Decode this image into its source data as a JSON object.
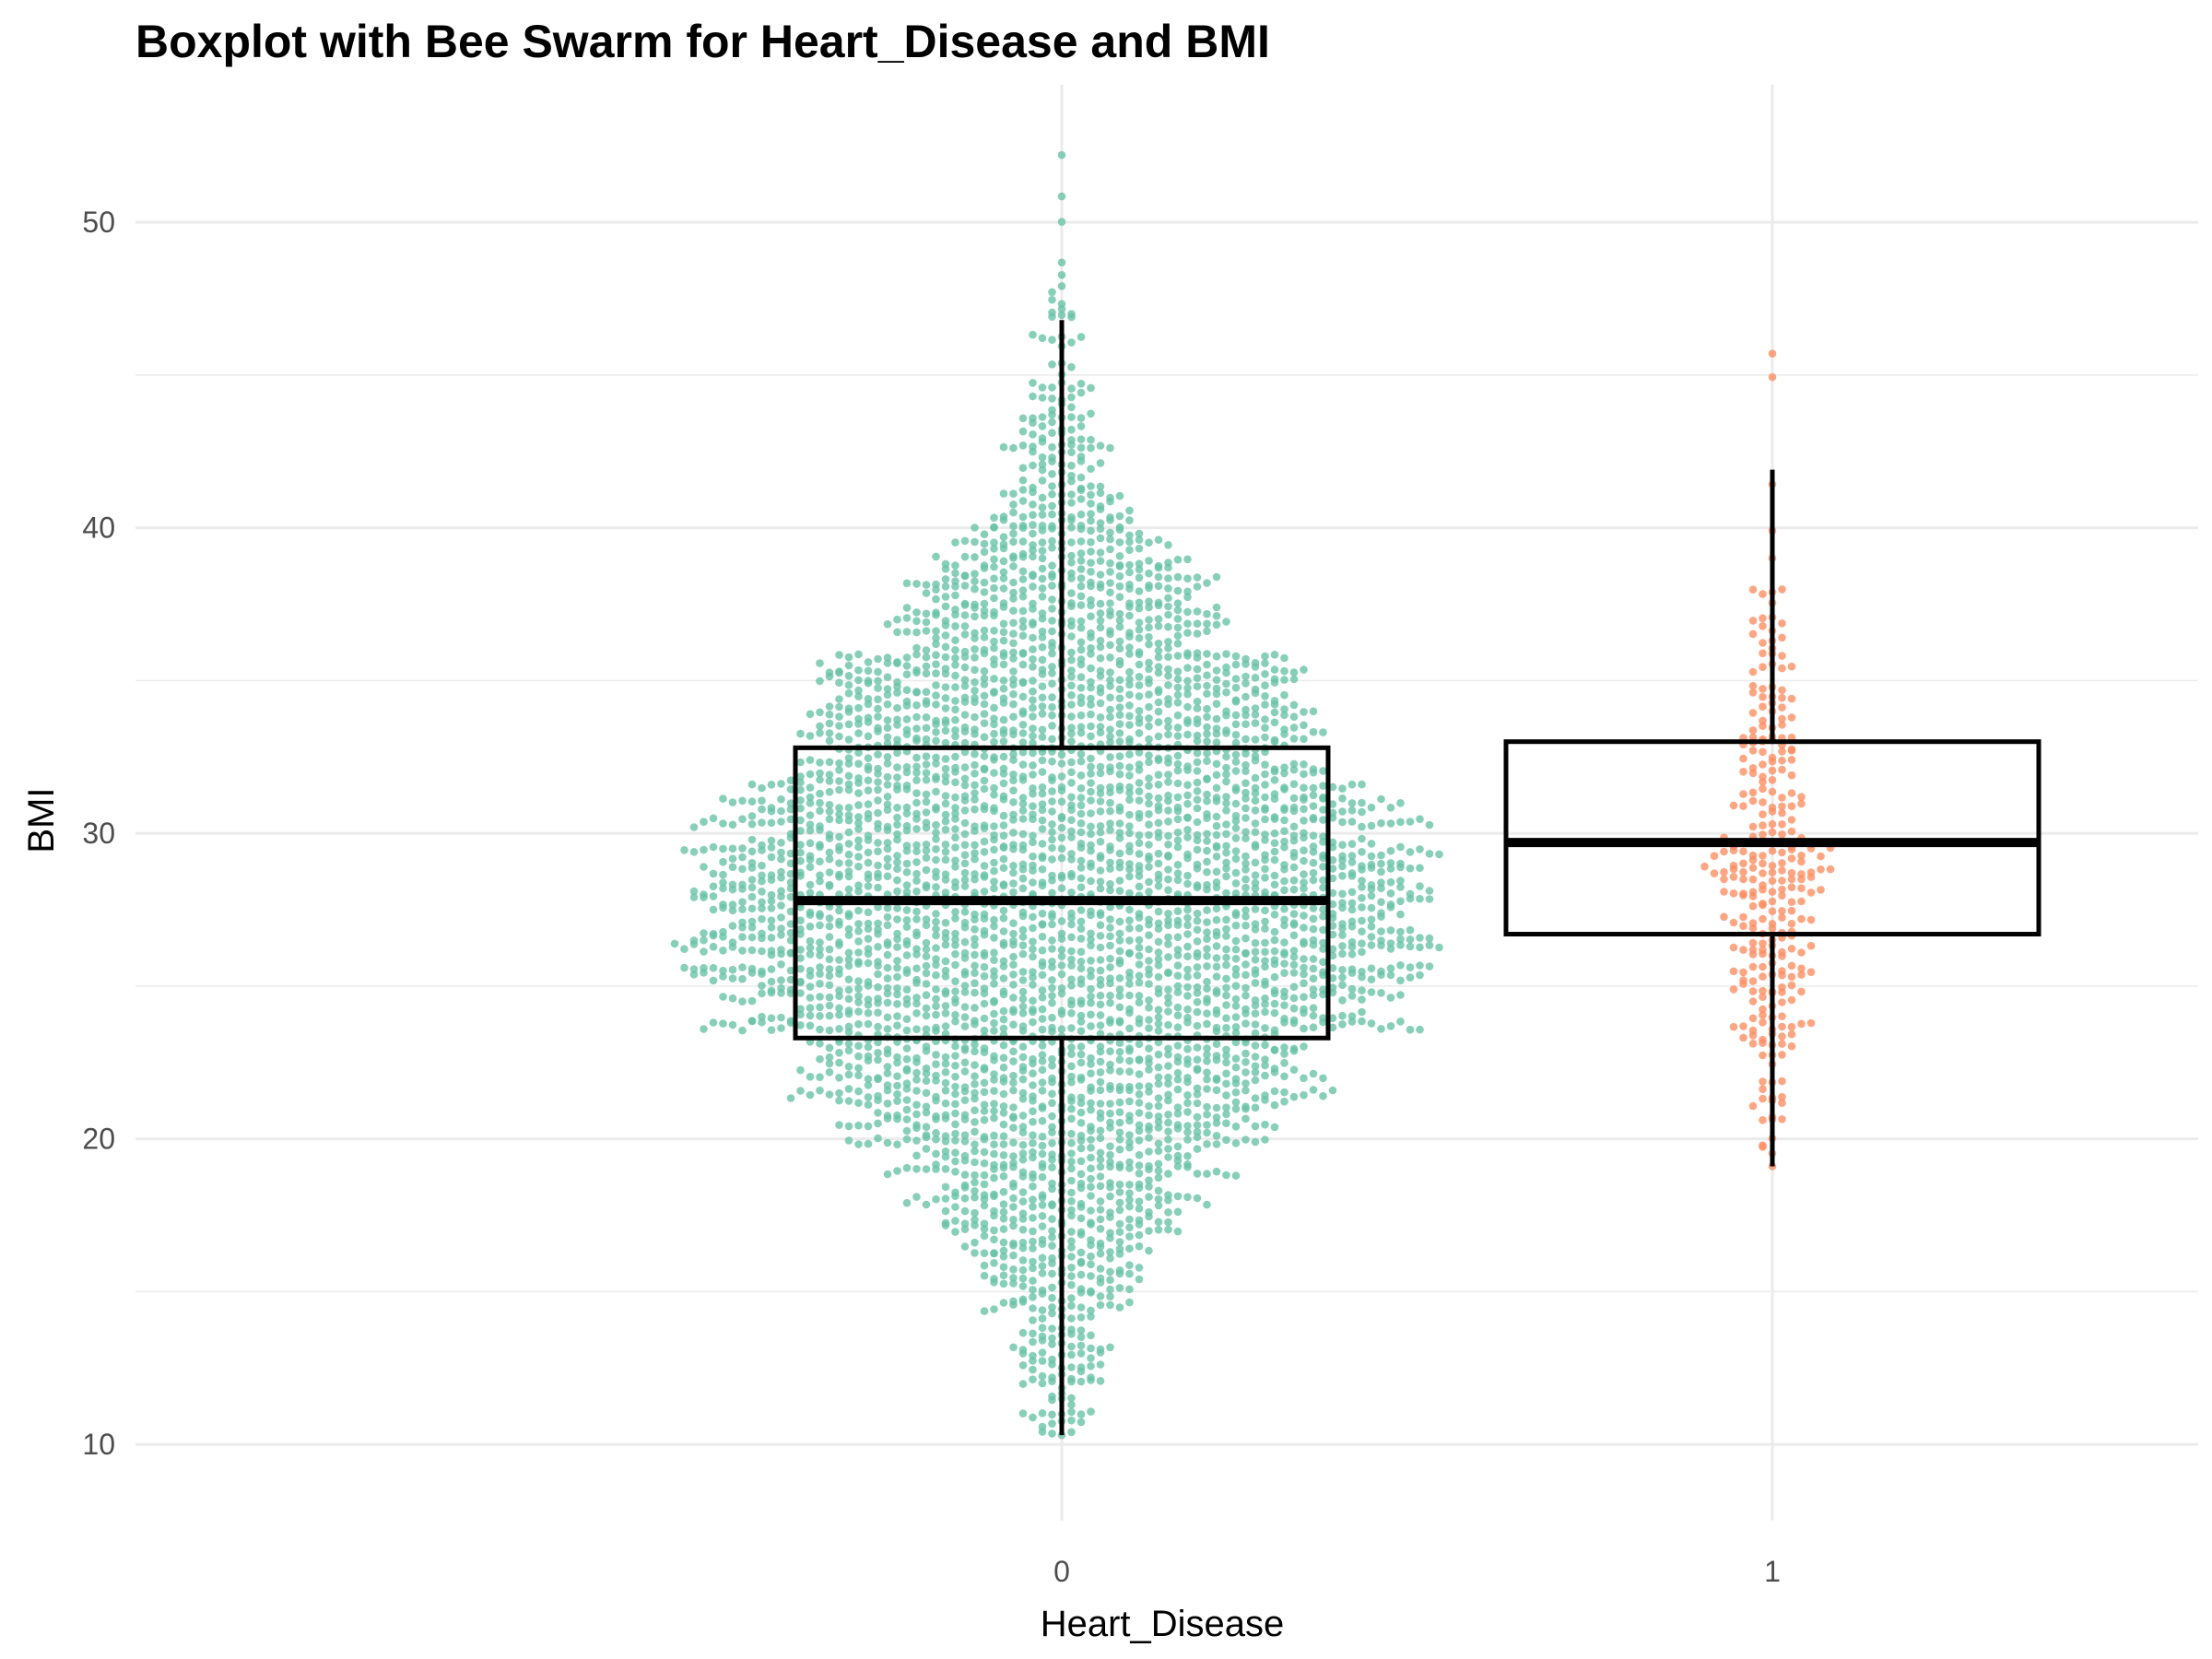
{
  "chart_data": {
    "type": "boxplot",
    "title": "Boxplot with Bee Swarm for Heart_Disease and BMI",
    "xlabel": "Heart_Disease",
    "ylabel": "BMI",
    "categories": [
      "0",
      "1"
    ],
    "ylim": [
      7.5,
      54.5
    ],
    "y_ticks": [
      10,
      20,
      30,
      40,
      50
    ],
    "grid": true,
    "legend": "none",
    "boxes": [
      {
        "category": "0",
        "whisker_low": 10.3,
        "q1": 23.3,
        "median": 27.8,
        "q3": 32.8,
        "whisker_high": 46.8,
        "color": "#66c2a5"
      },
      {
        "category": "1",
        "whisker_low": 19.1,
        "q1": 26.7,
        "median": 29.7,
        "q3": 33.0,
        "whisker_high": 41.9,
        "color": "#fc8d62"
      }
    ],
    "swarm": [
      {
        "category": "0",
        "n_points": 4000,
        "min": 10.3,
        "max": 52.2,
        "center": 27.8,
        "color": "#66c2a5"
      },
      {
        "category": "1",
        "n_points": 300,
        "min": 19.1,
        "max": 45.7,
        "center": 28.3,
        "color": "#fc8d62"
      }
    ]
  }
}
